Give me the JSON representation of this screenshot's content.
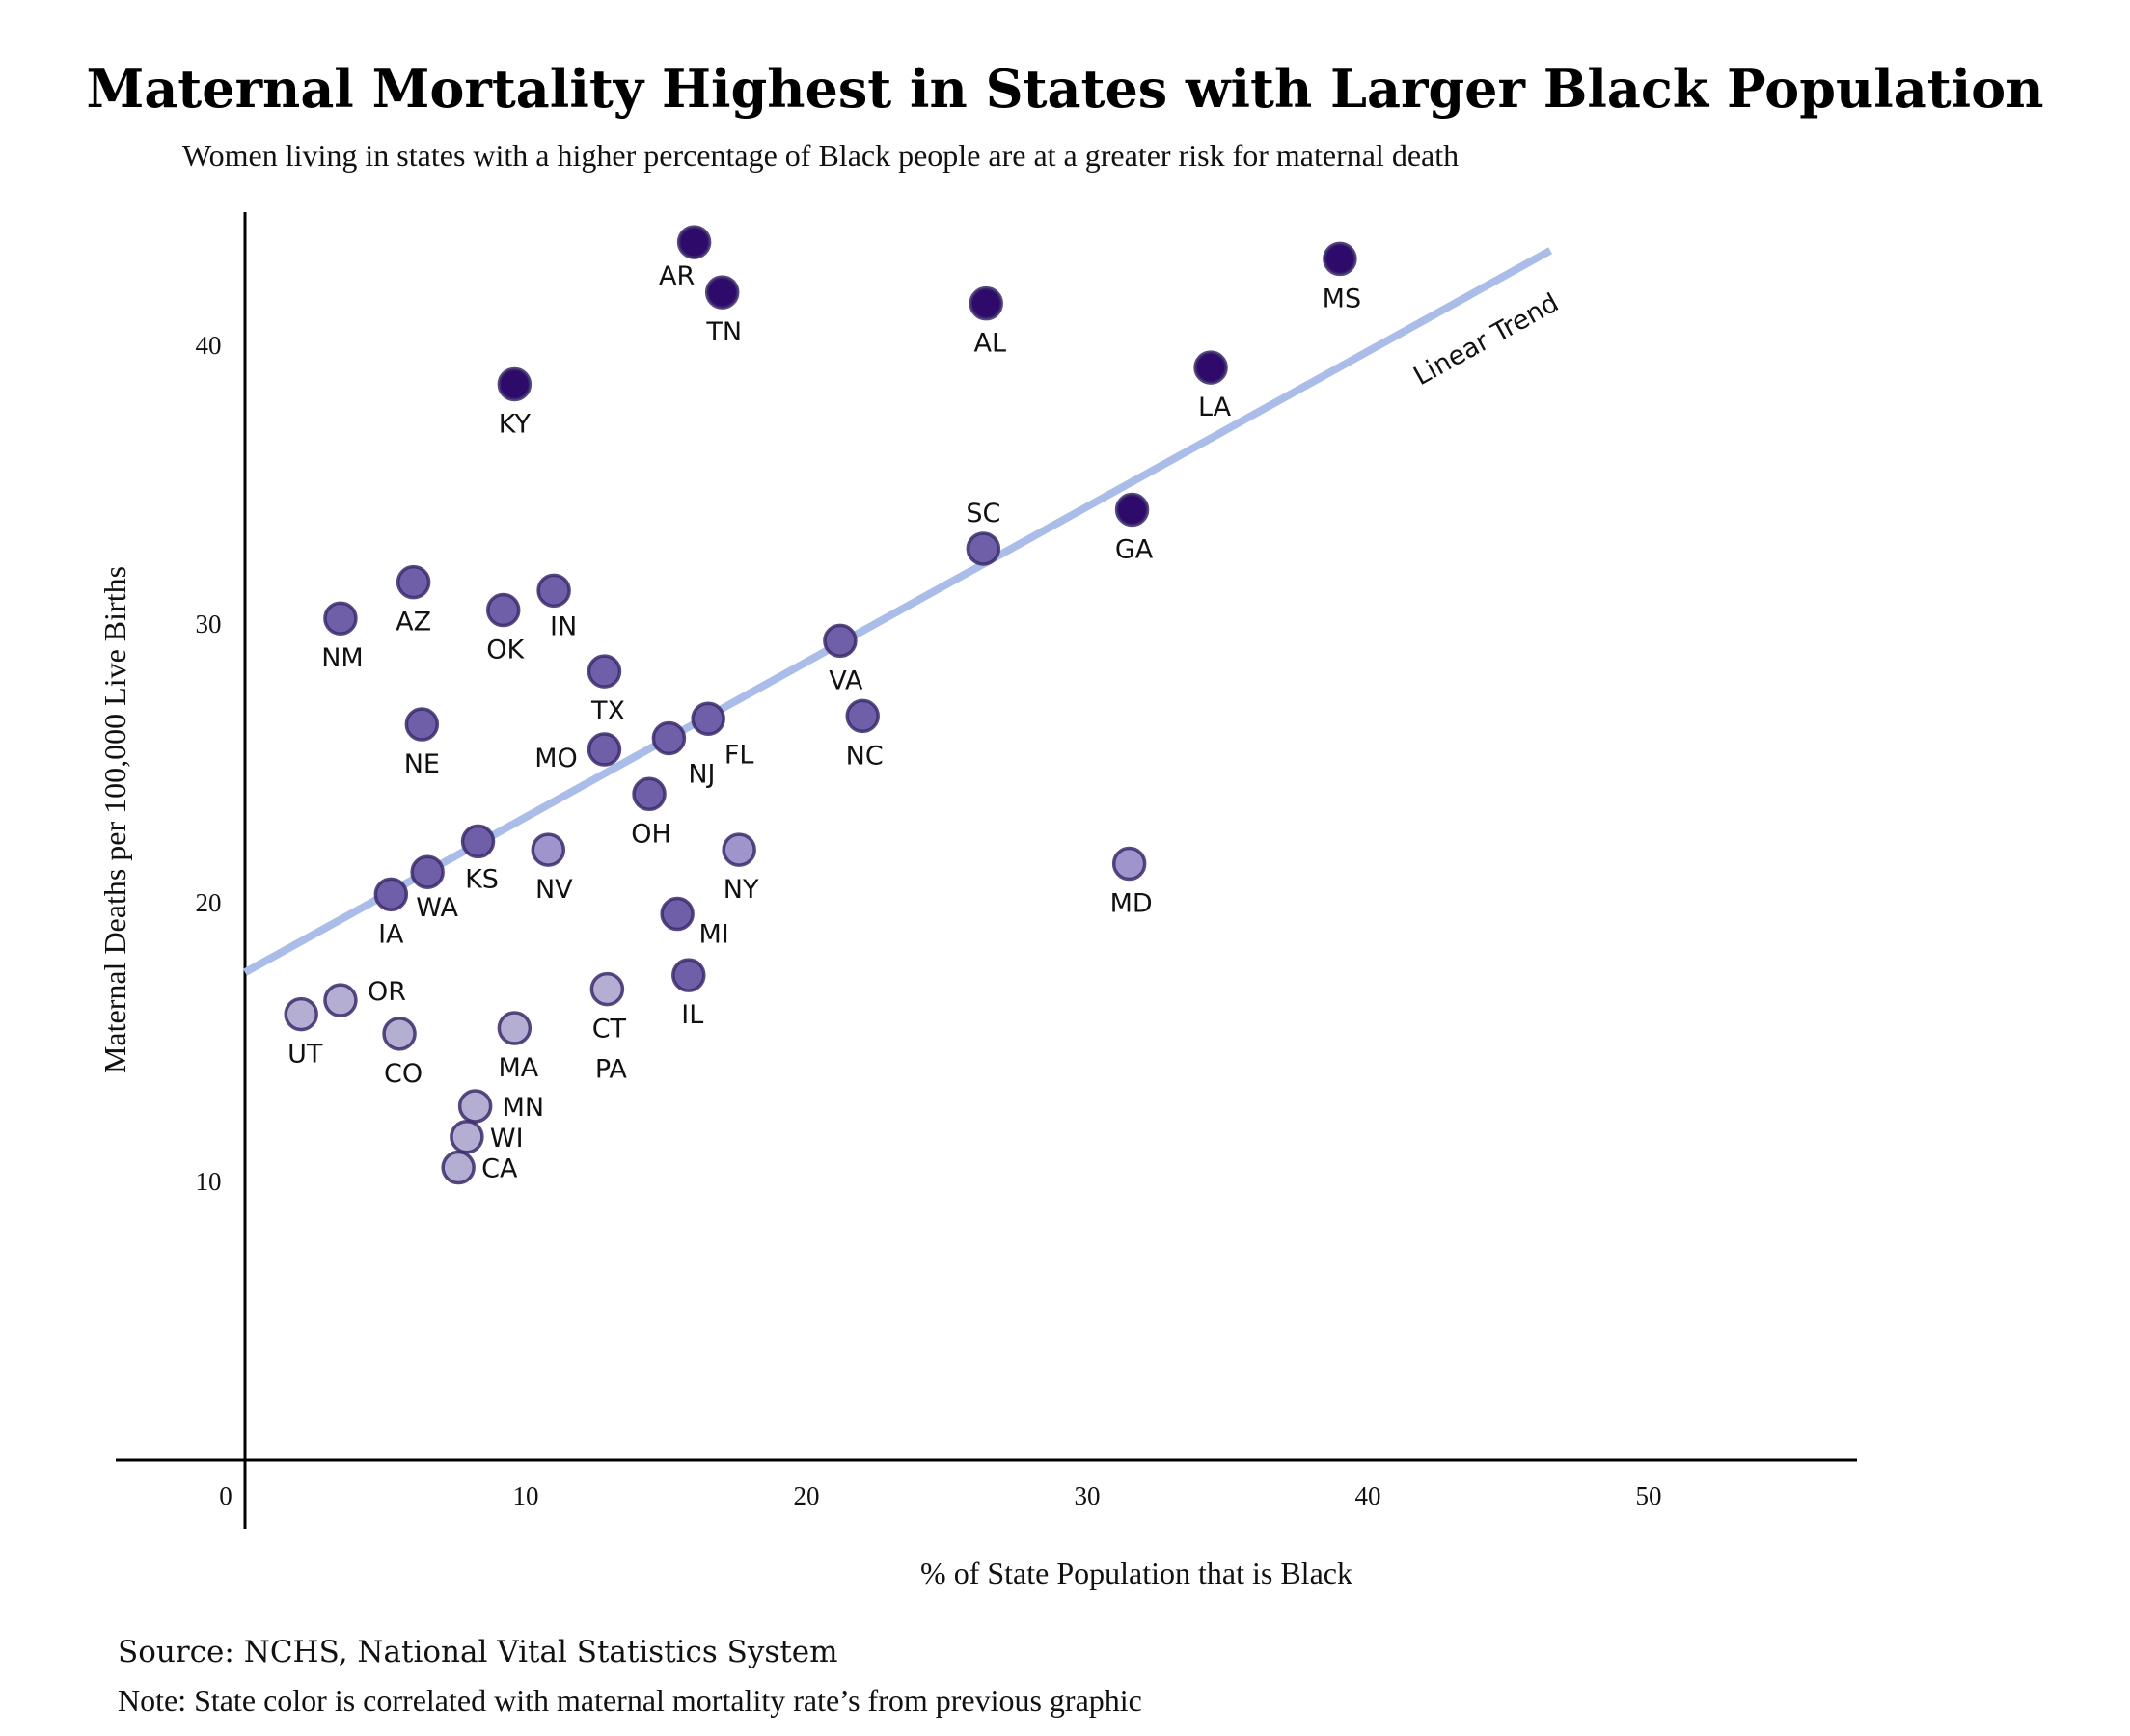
{
  "chart_data": {
    "type": "scatter",
    "title": "Maternal Mortality Highest in States with Larger Black Population",
    "subtitle": "Women living in states with a higher percentage of Black people are at a greater risk for maternal death",
    "xlabel": "% of State Population that is Black",
    "ylabel": "Maternal Deaths per 100,000 Live Births",
    "xlim": [
      0,
      57
    ],
    "ylim": [
      0,
      45
    ],
    "x_ticks": [
      0,
      10,
      20,
      30,
      40,
      50
    ],
    "y_ticks": [
      10,
      20,
      30,
      40
    ],
    "grid": false,
    "trend": {
      "label": "Linear Trend",
      "x": [
        0,
        46.5
      ],
      "y": [
        17.5,
        43.4
      ],
      "color": "#aabde8"
    },
    "color_scale": {
      "very_high": "#2e0a6b",
      "high": "#6e5fa8",
      "medium": "#9f94cc",
      "low": "#b4afd2"
    },
    "points": [
      {
        "state": "AR",
        "x": 16.0,
        "y": 43.7,
        "level": "very_high"
      },
      {
        "state": "MS",
        "x": 39.0,
        "y": 43.1,
        "level": "very_high"
      },
      {
        "state": "TN",
        "x": 17.0,
        "y": 41.9,
        "level": "very_high"
      },
      {
        "state": "AL",
        "x": 26.4,
        "y": 41.5,
        "level": "very_high"
      },
      {
        "state": "LA",
        "x": 34.4,
        "y": 39.2,
        "level": "very_high"
      },
      {
        "state": "KY",
        "x": 9.6,
        "y": 38.6,
        "level": "very_high"
      },
      {
        "state": "GA",
        "x": 31.6,
        "y": 34.1,
        "level": "very_high"
      },
      {
        "state": "SC",
        "x": 26.3,
        "y": 32.7,
        "level": "high"
      },
      {
        "state": "AZ",
        "x": 6.0,
        "y": 31.5,
        "level": "high"
      },
      {
        "state": "IN",
        "x": 11.0,
        "y": 31.2,
        "level": "high"
      },
      {
        "state": "OK",
        "x": 9.2,
        "y": 30.5,
        "level": "high"
      },
      {
        "state": "NM",
        "x": 3.4,
        "y": 30.2,
        "level": "high"
      },
      {
        "state": "VA",
        "x": 21.2,
        "y": 29.4,
        "level": "high"
      },
      {
        "state": "TX",
        "x": 12.8,
        "y": 28.3,
        "level": "high"
      },
      {
        "state": "NC",
        "x": 22.0,
        "y": 26.7,
        "level": "high"
      },
      {
        "state": "FL",
        "x": 16.5,
        "y": 26.6,
        "level": "high"
      },
      {
        "state": "NE",
        "x": 6.3,
        "y": 26.4,
        "level": "high"
      },
      {
        "state": "NJ",
        "x": 15.1,
        "y": 25.9,
        "level": "high"
      },
      {
        "state": "MO",
        "x": 12.8,
        "y": 25.5,
        "level": "high"
      },
      {
        "state": "OH",
        "x": 14.4,
        "y": 23.9,
        "level": "high"
      },
      {
        "state": "KS",
        "x": 8.3,
        "y": 22.2,
        "level": "high"
      },
      {
        "state": "NV",
        "x": 10.8,
        "y": 21.9,
        "level": "medium"
      },
      {
        "state": "NY",
        "x": 17.6,
        "y": 21.9,
        "level": "medium"
      },
      {
        "state": "MD",
        "x": 31.5,
        "y": 21.4,
        "level": "medium"
      },
      {
        "state": "WA",
        "x": 6.5,
        "y": 21.1,
        "level": "high"
      },
      {
        "state": "IA",
        "x": 5.2,
        "y": 20.3,
        "level": "high"
      },
      {
        "state": "MI",
        "x": 15.4,
        "y": 19.6,
        "level": "high"
      },
      {
        "state": "IL",
        "x": 15.8,
        "y": 17.4,
        "level": "high"
      },
      {
        "state": "CT",
        "x": 12.9,
        "y": 16.9,
        "level": "low"
      },
      {
        "state": "OR",
        "x": 3.4,
        "y": 16.5,
        "level": "low"
      },
      {
        "state": "UT",
        "x": 2.0,
        "y": 16.0,
        "level": "low"
      },
      {
        "state": "MA",
        "x": 9.6,
        "y": 15.5,
        "level": "low"
      },
      {
        "state": "CO",
        "x": 5.5,
        "y": 15.3,
        "level": "low"
      },
      {
        "state": "MN",
        "x": 8.2,
        "y": 12.7,
        "level": "low"
      },
      {
        "state": "WI",
        "x": 7.9,
        "y": 11.6,
        "level": "low"
      },
      {
        "state": "CA",
        "x": 7.6,
        "y": 10.5,
        "level": "low"
      }
    ],
    "pa_label": "PA"
  },
  "source": "Source: NCHS, National Vital Statistics System",
  "note": "Note: State color is correlated with maternal mortality rate’s from previous graphic"
}
